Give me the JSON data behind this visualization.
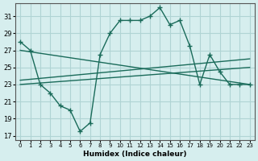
{
  "background_color": "#d6eeee",
  "grid_color": "#b0d4d4",
  "line_color": "#1a6b5a",
  "x_label": "Humidex (Indice chaleur)",
  "x_ticks": [
    0,
    1,
    2,
    3,
    4,
    5,
    6,
    7,
    8,
    9,
    10,
    11,
    12,
    13,
    14,
    15,
    16,
    17,
    18,
    19,
    20,
    21,
    22,
    23
  ],
  "y_ticks": [
    17,
    19,
    21,
    23,
    25,
    27,
    29,
    31
  ],
  "ylim": [
    16.5,
    32.5
  ],
  "xlim": [
    -0.5,
    23.5
  ],
  "main_curve_x": [
    0,
    1,
    2,
    3,
    4,
    5,
    6,
    7,
    8,
    9,
    10,
    11,
    12,
    13,
    14,
    15,
    16,
    17,
    18,
    19,
    20,
    21,
    22,
    23
  ],
  "main_curve_y": [
    28,
    27,
    23,
    22,
    20.5,
    20,
    17.5,
    18.5,
    26.5,
    29,
    30.5,
    30.5,
    30.5,
    31,
    32,
    30,
    30.5,
    27.5,
    23,
    26.5,
    24.5,
    23,
    23,
    23
  ],
  "line1_x": [
    0,
    23
  ],
  "line1_y": [
    27.0,
    23.0
  ],
  "line2_x": [
    0,
    23
  ],
  "line2_y": [
    23.5,
    26.0
  ],
  "line3_x": [
    0,
    23
  ],
  "line3_y": [
    23.0,
    25.0
  ]
}
